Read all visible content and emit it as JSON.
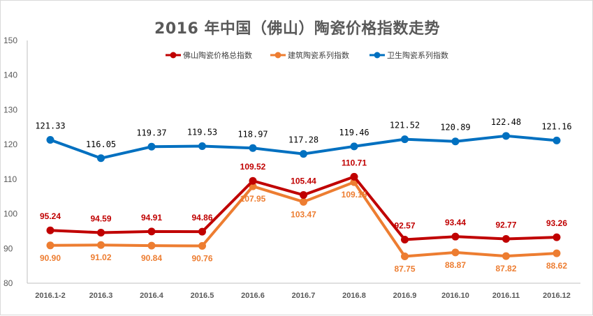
{
  "chart_data": {
    "type": "line",
    "title": "2016 年中国（佛山）陶瓷价格指数走势",
    "categories": [
      "2016.1-2",
      "2016.3",
      "2016.4",
      "2016.5",
      "2016.6",
      "2016.7",
      "2016.8",
      "2016.9",
      "2016.10",
      "2016.11",
      "2016.12"
    ],
    "ylim": [
      80,
      150
    ],
    "yticks": [
      80,
      90,
      100,
      110,
      120,
      130,
      140,
      150
    ],
    "legend_position": "top",
    "grid": false,
    "series": [
      {
        "name": "佛山陶瓷价格总指数",
        "color": "#c00000",
        "label_class": "lbl-red",
        "values": [
          95.24,
          94.59,
          94.91,
          94.86,
          109.52,
          105.44,
          110.71,
          92.57,
          93.44,
          92.77,
          93.26
        ],
        "labels": [
          "95.24",
          "94.59",
          "94.91",
          "94.86",
          "109.52",
          "105.44",
          "110.71",
          "92.57",
          "93.44",
          "92.77",
          "93.26"
        ]
      },
      {
        "name": "建筑陶瓷系列指数",
        "color": "#ed7d31",
        "label_class": "lbl-orange",
        "values": [
          90.9,
          91.02,
          90.84,
          90.76,
          107.95,
          103.47,
          109.15,
          87.75,
          88.87,
          87.82,
          88.62
        ],
        "labels": [
          "90.90",
          "91.02",
          "90.84",
          "90.76",
          "107.95",
          "103.47",
          "109.15",
          "87.75",
          "88.87",
          "87.82",
          "88.62"
        ]
      },
      {
        "name": "卫生陶瓷系列指数",
        "color": "#0070c0",
        "label_class": "lbl-blue",
        "values": [
          121.33,
          116.05,
          119.37,
          119.53,
          118.97,
          117.28,
          119.46,
          121.52,
          120.89,
          122.48,
          121.16
        ],
        "labels": [
          "121.33",
          "116.05",
          "119.37",
          "119.53",
          "118.97",
          "117.28",
          "119.46",
          "121.52",
          "120.89",
          "122.48",
          "121.16"
        ]
      }
    ]
  }
}
